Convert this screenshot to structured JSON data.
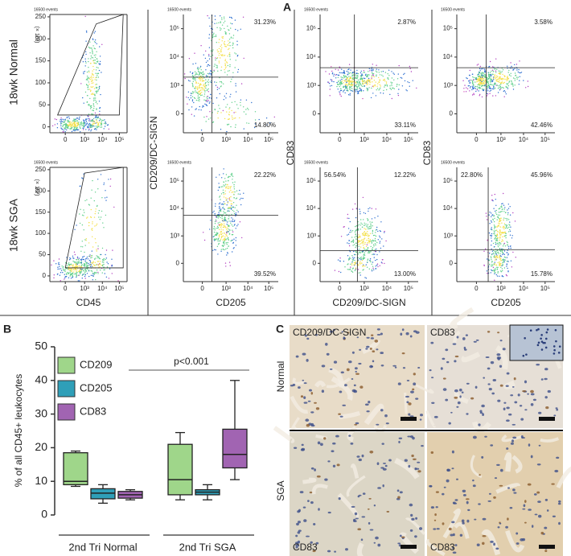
{
  "panel_a": {
    "label": "A",
    "row_labels": [
      "18wk Normal",
      "18wk SGA"
    ],
    "columns": [
      {
        "x_title": "CD45",
        "y_note": "(× 10³)",
        "y_ticks": [
          "250",
          "200",
          "150",
          "100",
          "50",
          "0"
        ],
        "x_ticks": [
          "0",
          "10³",
          "10⁴",
          "10⁵"
        ]
      },
      {
        "x_title": "CD205",
        "y_title": "CD209/DC-SIGN",
        "y_ticks": [
          "10⁵",
          "10⁴",
          "10³",
          "0"
        ],
        "x_ticks": [
          "0",
          "10³",
          "10⁴",
          "10⁵"
        ]
      },
      {
        "x_title": "CD209/DC-SIGN",
        "y_title": "CD83",
        "y_ticks": [
          "10⁵",
          "10⁴",
          "10³",
          "0"
        ],
        "x_ticks": [
          "0",
          "10³",
          "10⁴",
          "10⁵"
        ]
      },
      {
        "x_title": "CD205",
        "y_title": "CD83",
        "y_ticks": [
          "10⁵",
          "10⁴",
          "10³",
          "0"
        ],
        "x_ticks": [
          "0",
          "10³",
          "10⁴",
          "10⁵"
        ]
      }
    ],
    "plots": [
      [
        {
          "events": "16500 events",
          "percentages": []
        },
        {
          "events": "16500 events",
          "percentages": [
            "31.23%",
            "14.80%"
          ]
        },
        {
          "events": "16500 events",
          "percentages": [
            "2.87%",
            "33.11%"
          ]
        },
        {
          "events": "16500 events",
          "percentages": [
            "3.58%",
            "42.46%"
          ]
        }
      ],
      [
        {
          "events": "16500 events",
          "percentages": []
        },
        {
          "events": "16500 events",
          "percentages": [
            "22.22%",
            "39.52%"
          ]
        },
        {
          "events": "16500 events",
          "percentages": [
            "56.54%",
            "12.22%",
            "13.00%"
          ]
        },
        {
          "events": "16500 events",
          "percentages": [
            "22.80%",
            "45.96%",
            "15.78%"
          ]
        }
      ]
    ]
  },
  "panel_b": {
    "label": "B"
  },
  "chart_data": {
    "type": "box",
    "y_label": "% of all CD45+ leukocytes",
    "categories": [
      "2nd Tri Normal",
      "2nd Tri SGA"
    ],
    "ylim": [
      0,
      50
    ],
    "yticks": [
      0,
      10,
      20,
      30,
      40,
      50
    ],
    "annotation": "p<0.001",
    "series": [
      {
        "name": "CD209",
        "color": "#9fd68a",
        "values": [
          {
            "min": 8.5,
            "q1": 9,
            "median": 10,
            "q3": 18.5,
            "max": 19
          },
          {
            "min": 4.5,
            "q1": 6,
            "median": 10.5,
            "q3": 21,
            "max": 24.5
          }
        ]
      },
      {
        "name": "CD205",
        "color": "#2f9fb8",
        "values": [
          {
            "min": 3.5,
            "q1": 4.8,
            "median": 6.5,
            "q3": 7.8,
            "max": 9
          },
          {
            "min": 4.5,
            "q1": 6,
            "median": 6.8,
            "q3": 7.5,
            "max": 9
          }
        ]
      },
      {
        "name": "CD83",
        "color": "#a164b2",
        "values": [
          {
            "min": 4.5,
            "q1": 5,
            "median": 6,
            "q3": 7,
            "max": 7.5
          },
          {
            "min": 10.5,
            "q1": 14,
            "median": 18,
            "q3": 25.5,
            "max": 40
          }
        ]
      }
    ]
  },
  "panel_c": {
    "label": "C",
    "row_labels": [
      "Normal",
      "SGA"
    ],
    "tiles": [
      "CD209/DC-SIGN",
      "CD83",
      "CD83",
      "CD83"
    ]
  }
}
